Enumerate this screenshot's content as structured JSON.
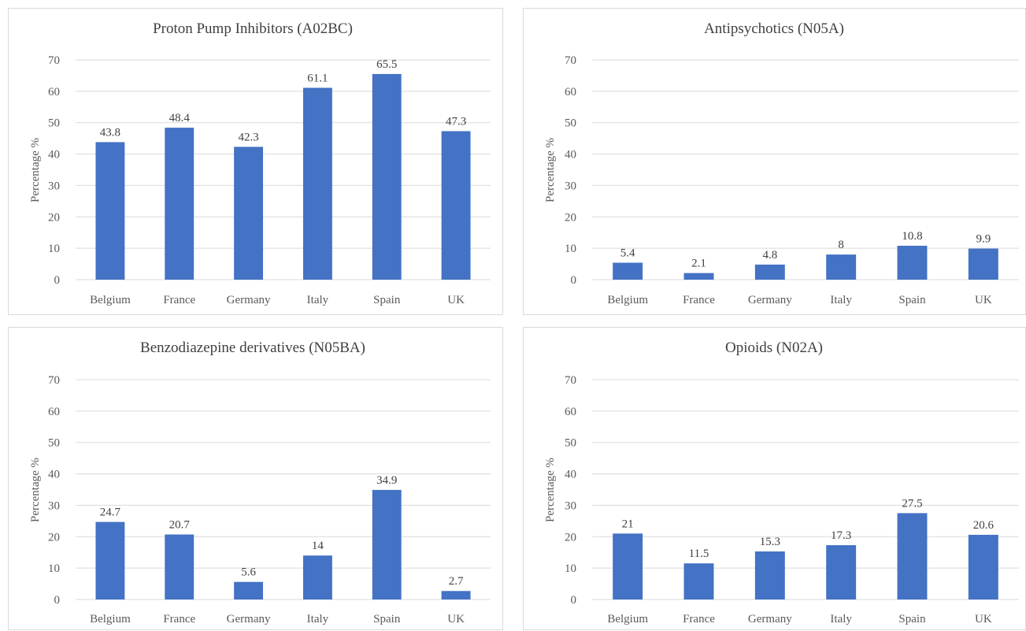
{
  "colors": {
    "bar": "#4472c4",
    "grid": "#d9d9d9"
  },
  "chart_data": [
    {
      "type": "bar",
      "title": "Proton Pump Inhibitors (A02BC)",
      "ylabel": "Percentage %",
      "categories": [
        "Belgium",
        "France",
        "Germany",
        "Italy",
        "Spain",
        "UK"
      ],
      "values": [
        43.8,
        48.4,
        42.3,
        61.1,
        65.5,
        47.3
      ],
      "value_labels": [
        "43.8",
        "48.4",
        "42.3",
        "61.1",
        "65.5",
        "47.3"
      ],
      "yticks": [
        "0",
        "10",
        "20",
        "30",
        "40",
        "50",
        "60",
        "70"
      ],
      "ylim": [
        0,
        70
      ],
      "grid": true
    },
    {
      "type": "bar",
      "title": "Antipsychotics (N05A)",
      "ylabel": "Percentage %",
      "categories": [
        "Belgium",
        "France",
        "Germany",
        "Italy",
        "Spain",
        "UK"
      ],
      "values": [
        5.4,
        2.1,
        4.8,
        8,
        10.8,
        9.9
      ],
      "value_labels": [
        "5.4",
        "2.1",
        "4.8",
        "8",
        "10.8",
        "9.9"
      ],
      "yticks": [
        "0",
        "10",
        "20",
        "30",
        "40",
        "50",
        "60",
        "70"
      ],
      "ylim": [
        0,
        70
      ],
      "grid": true
    },
    {
      "type": "bar",
      "title": "Benzodiazepine derivatives (N05BA)",
      "ylabel": "Percentage %",
      "categories": [
        "Belgium",
        "France",
        "Germany",
        "Italy",
        "Spain",
        "UK"
      ],
      "values": [
        24.7,
        20.7,
        5.6,
        14,
        34.9,
        2.7
      ],
      "value_labels": [
        "24.7",
        "20.7",
        "5.6",
        "14",
        "34.9",
        "2.7"
      ],
      "yticks": [
        "0",
        "10",
        "20",
        "30",
        "40",
        "50",
        "60",
        "70"
      ],
      "ylim": [
        0,
        70
      ],
      "grid": true
    },
    {
      "type": "bar",
      "title": "Opioids (N02A)",
      "ylabel": "Percentage %",
      "categories": [
        "Belgium",
        "France",
        "Germany",
        "Italy",
        "Spain",
        "UK"
      ],
      "values": [
        21,
        11.5,
        15.3,
        17.3,
        27.5,
        20.6
      ],
      "value_labels": [
        "21",
        "11.5",
        "15.3",
        "17.3",
        "27.5",
        "20.6"
      ],
      "yticks": [
        "0",
        "10",
        "20",
        "30",
        "40",
        "50",
        "60",
        "70"
      ],
      "ylim": [
        0,
        70
      ],
      "grid": true
    }
  ]
}
